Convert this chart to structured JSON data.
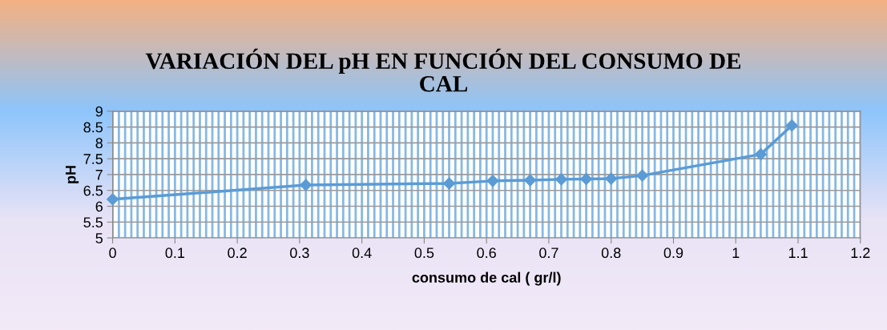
{
  "chart_data": {
    "type": "line",
    "title": "VARIACIÓN DEL pH EN FUNCIÓN DEL CONSUMO DE\nCAL",
    "xlabel": "consumo de cal ( gr/l)",
    "ylabel": "pH",
    "x": [
      0,
      0.31,
      0.54,
      0.61,
      0.67,
      0.72,
      0.76,
      0.8,
      0.85,
      1.04,
      1.09
    ],
    "series": [
      {
        "color": "#5b9bd5",
        "values": [
          6.22,
          6.67,
          6.72,
          6.8,
          6.82,
          6.85,
          6.86,
          6.87,
          6.97,
          7.64,
          8.55
        ]
      }
    ],
    "xlim": [
      0,
      1.2
    ],
    "xticks": [
      0,
      0.1,
      0.2,
      0.3,
      0.4,
      0.5,
      0.6,
      0.7,
      0.8,
      0.9,
      1,
      1.1,
      1.2
    ],
    "ylim": [
      5,
      9
    ],
    "yticks": [
      5,
      5.5,
      6,
      6.5,
      7,
      7.5,
      8,
      8.5,
      9
    ],
    "grid": true,
    "marker": "diamond",
    "line_style": "solid",
    "legend": false
  }
}
